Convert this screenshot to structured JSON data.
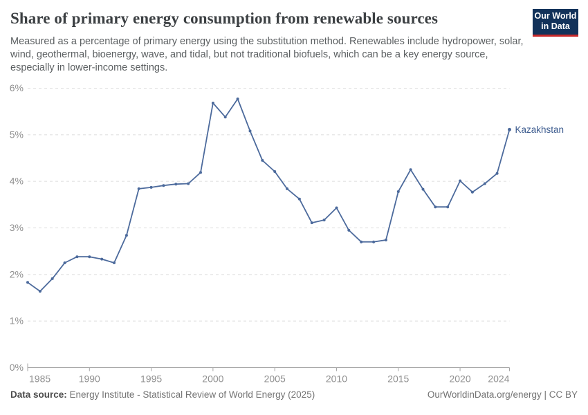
{
  "header": {
    "title": "Share of primary energy consumption from renewable sources",
    "subtitle": "Measured as a percentage of primary energy using the substitution method. Renewables include hydropower, solar, wind, geothermal, bioenergy, wave, and tidal, but not traditional biofuels, which can be a key energy source, especially in lower-income settings."
  },
  "logo": {
    "line1": "Our World",
    "line2": "in Data"
  },
  "chart_data": {
    "type": "line",
    "title": "Share of primary energy consumption from renewable sources",
    "xlabel": "",
    "ylabel": "",
    "xlim": [
      1985,
      2024
    ],
    "ylim": [
      0,
      6
    ],
    "grid": "horizontal-dashed",
    "legend_position": "end-of-line-label",
    "yticks": [
      0,
      1,
      2,
      3,
      4,
      5,
      6
    ],
    "ytick_labels": [
      "0%",
      "1%",
      "2%",
      "3%",
      "4%",
      "5%",
      "6%"
    ],
    "xticks": [
      1985,
      1990,
      1995,
      2000,
      2005,
      2010,
      2015,
      2020,
      2024
    ],
    "xtick_labels": [
      "1985",
      "1990",
      "1995",
      "2000",
      "2005",
      "2010",
      "2015",
      "2020",
      "2024"
    ],
    "series": [
      {
        "name": "Kazakhstan",
        "x": [
          1985,
          1986,
          1987,
          1988,
          1989,
          1990,
          1991,
          1992,
          1993,
          1994,
          1995,
          1996,
          1997,
          1998,
          1999,
          2000,
          2001,
          2002,
          2003,
          2004,
          2005,
          2006,
          2007,
          2008,
          2009,
          2010,
          2011,
          2012,
          2013,
          2014,
          2015,
          2016,
          2017,
          2018,
          2019,
          2020,
          2021,
          2022,
          2023,
          2024
        ],
        "values": [
          1.83,
          1.64,
          1.91,
          2.25,
          2.38,
          2.38,
          2.33,
          2.25,
          2.84,
          3.84,
          3.87,
          3.91,
          3.94,
          3.95,
          4.19,
          5.68,
          5.38,
          5.77,
          5.08,
          4.45,
          4.21,
          3.84,
          3.62,
          3.11,
          3.17,
          3.43,
          2.95,
          2.7,
          2.7,
          2.74,
          3.78,
          4.25,
          3.83,
          3.45,
          3.45,
          4.01,
          3.77,
          3.95,
          4.17,
          5.11
        ]
      }
    ]
  },
  "footer": {
    "source_label": "Data source:",
    "source_text": "Energy Institute - Statistical Review of World Energy (2025)",
    "rights": "OurWorldinData.org/energy | CC BY"
  },
  "colors": {
    "series": "#4C6A9C",
    "series_label": "#3d5c8f",
    "grid": "#dcdcdc",
    "axis": "#a3a3a3",
    "tick_text": "#8f8f8f",
    "title": "#3b3f42",
    "subtitle": "#5b5f61",
    "footer": "#737373",
    "logo_bg": "#12325a",
    "logo_red": "#c7292b"
  }
}
